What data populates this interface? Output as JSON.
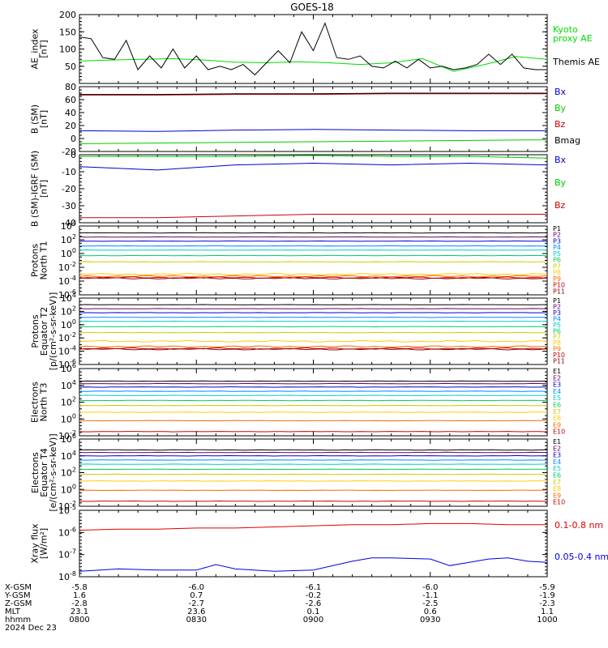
{
  "title": "GOES-18",
  "chart_data": [
    {
      "type": "line",
      "ylabel_lines": [
        "AE_index",
        "[nT]"
      ],
      "ylim": [
        0,
        200
      ],
      "yticks": [
        "50",
        "100",
        "150",
        "200"
      ],
      "series": [
        {
          "name": "Kyoto proxy AE",
          "legend_lines": [
            "Kyoto",
            "proxy AE"
          ],
          "color": "#00dd00",
          "x": [
            0,
            8,
            16,
            24,
            32,
            40,
            48,
            56,
            64,
            72,
            80,
            88,
            96,
            104,
            112,
            120
          ],
          "y": [
            65,
            68,
            70,
            72,
            68,
            62,
            60,
            63,
            60,
            55,
            60,
            72,
            35,
            55,
            78,
            70
          ]
        },
        {
          "name": "Themis AE",
          "legend_lines": [
            "Themis AE"
          ],
          "color": "#000000",
          "x": [
            0,
            3,
            6,
            9,
            12,
            15,
            18,
            21,
            24,
            27,
            30,
            33,
            36,
            39,
            42,
            45,
            48,
            51,
            54,
            57,
            60,
            63,
            66,
            69,
            72,
            75,
            78,
            81,
            84,
            87,
            90,
            93,
            96,
            99,
            102,
            105,
            108,
            111,
            114,
            117,
            120
          ],
          "y": [
            135,
            130,
            75,
            70,
            125,
            40,
            80,
            45,
            100,
            45,
            80,
            40,
            50,
            40,
            55,
            25,
            60,
            95,
            60,
            150,
            95,
            175,
            75,
            70,
            80,
            50,
            45,
            65,
            45,
            70,
            45,
            50,
            40,
            45,
            55,
            85,
            55,
            85,
            45,
            40,
            40
          ]
        }
      ]
    },
    {
      "type": "line",
      "ylabel_lines": [
        "B (SM)",
        "[nT]"
      ],
      "ylim": [
        -20,
        80
      ],
      "yticks": [
        "-20",
        "0",
        "20",
        "40",
        "60",
        "80"
      ],
      "series": [
        {
          "name": "Bx",
          "color": "#0000cc",
          "x": [
            0,
            20,
            40,
            60,
            80,
            100,
            120
          ],
          "y": [
            12,
            11,
            13,
            14,
            13,
            12,
            12
          ]
        },
        {
          "name": "By",
          "color": "#00cc00",
          "x": [
            0,
            20,
            40,
            60,
            80,
            100,
            120
          ],
          "y": [
            -8,
            -7,
            -6,
            -5,
            -4,
            -3,
            -2
          ]
        },
        {
          "name": "Bz",
          "color": "#cc0000",
          "x": [
            0,
            20,
            40,
            60,
            80,
            100,
            120
          ],
          "y": [
            67,
            67,
            68,
            68,
            69,
            69,
            69
          ]
        },
        {
          "name": "Bmag",
          "color": "#000000",
          "x": [
            0,
            20,
            40,
            60,
            80,
            100,
            120
          ],
          "y": [
            68,
            68,
            69,
            69,
            70,
            70,
            70
          ]
        }
      ]
    },
    {
      "type": "line",
      "ylabel_lines": [
        "B (SM)-IGRF (SM)",
        "[nT]"
      ],
      "ylim": [
        -40,
        0
      ],
      "yticks": [
        "-40",
        "-30",
        "-20",
        "-10",
        "0"
      ],
      "series": [
        {
          "name": "Bx",
          "color": "#0000cc",
          "x": [
            0,
            20,
            40,
            60,
            80,
            100,
            120
          ],
          "y": [
            -7,
            -9,
            -6,
            -5,
            -6,
            -5,
            -6
          ]
        },
        {
          "name": "By",
          "color": "#00cc00",
          "x": [
            0,
            20,
            40,
            60,
            80,
            100,
            120
          ],
          "y": [
            -1,
            -1,
            -1,
            0,
            -1,
            -1,
            -2
          ]
        },
        {
          "name": "Bz",
          "color": "#cc0000",
          "x": [
            0,
            20,
            40,
            60,
            80,
            100,
            120
          ],
          "y": [
            -37,
            -37,
            -36,
            -35,
            -35,
            -35,
            -35
          ]
        }
      ]
    },
    {
      "type": "line",
      "log": true,
      "ylabel_lines": [
        "Protons",
        "North T1"
      ],
      "ylim": [
        -6,
        4
      ],
      "yticks": [
        "10^4",
        "10^2",
        "10^0",
        "10^-2",
        "10^-4",
        "10^-6"
      ],
      "series": [
        {
          "name": "P1",
          "color": "#000000",
          "level": 3.0
        },
        {
          "name": "P2",
          "color": "#660066",
          "level": 2.4
        },
        {
          "name": "P3",
          "color": "#0000cc",
          "level": 1.8
        },
        {
          "name": "P4",
          "color": "#0088ff",
          "level": 1.1
        },
        {
          "name": "P5",
          "color": "#00cccc",
          "level": 0.5
        },
        {
          "name": "P6",
          "color": "#00cc66",
          "level": -0.3
        },
        {
          "name": "P7",
          "color": "#cccc00",
          "level": -1.2
        },
        {
          "name": "P8",
          "color": "#ffcc00",
          "level": -3.0
        },
        {
          "name": "P9",
          "color": "#ff6600",
          "level": -3.3
        },
        {
          "name": "P10",
          "color": "#cc0000",
          "level": -3.5
        },
        {
          "name": "P11",
          "color": "#990000",
          "level": -3.6
        }
      ]
    },
    {
      "type": "line",
      "log": true,
      "ylabel_lines": [
        "Protons",
        "Equator T2",
        "[p/(cm²-s-sr-keV)]"
      ],
      "ylim": [
        -6,
        4
      ],
      "yticks": [
        "10^4",
        "10^2",
        "10^0",
        "10^-2",
        "10^-4",
        "10^-6"
      ],
      "series": [
        {
          "name": "P1",
          "color": "#000000",
          "level": 3.0
        },
        {
          "name": "P2",
          "color": "#660066",
          "level": 2.4
        },
        {
          "name": "P3",
          "color": "#0000cc",
          "level": 1.8
        },
        {
          "name": "P4",
          "color": "#0088ff",
          "level": 1.1
        },
        {
          "name": "P5",
          "color": "#00cccc",
          "level": 0.5
        },
        {
          "name": "P6",
          "color": "#00cc66",
          "level": -0.3
        },
        {
          "name": "P7",
          "color": "#cccc00",
          "level": -1.2
        },
        {
          "name": "P8",
          "color": "#ffcc00",
          "level": -2.5
        },
        {
          "name": "P9",
          "color": "#ff6600",
          "level": -3.3
        },
        {
          "name": "P10",
          "color": "#cc0000",
          "level": -3.6
        },
        {
          "name": "P11",
          "color": "#990000",
          "level": -3.7
        }
      ]
    },
    {
      "type": "line",
      "log": true,
      "ylabel_lines": [
        "Electrons",
        "North T3"
      ],
      "ylim": [
        -2,
        6
      ],
      "yticks": [
        "10^6",
        "10^4",
        "10^2",
        "10^0",
        "10^-2"
      ],
      "series": [
        {
          "name": "E1",
          "color": "#000000",
          "level": 4.5
        },
        {
          "name": "E2",
          "color": "#660066",
          "level": 4.2
        },
        {
          "name": "E3",
          "color": "#0000cc",
          "level": 3.8
        },
        {
          "name": "E4",
          "color": "#0088ff",
          "level": 3.3
        },
        {
          "name": "E5",
          "color": "#00cccc",
          "level": 2.8
        },
        {
          "name": "E6",
          "color": "#00cc66",
          "level": 2.2
        },
        {
          "name": "E7",
          "color": "#cccc00",
          "level": 1.6
        },
        {
          "name": "E8",
          "color": "#ffcc00",
          "level": 0.8
        },
        {
          "name": "E9",
          "color": "#ff6600",
          "level": -0.2
        },
        {
          "name": "E10",
          "color": "#cc0000",
          "level": -1.5
        }
      ]
    },
    {
      "type": "line",
      "log": true,
      "ylabel_lines": [
        "Electrons",
        "Equator T4",
        "[e/(cm²-s-sr-keV)]"
      ],
      "ylim": [
        -2,
        6
      ],
      "yticks": [
        "10^6",
        "10^4",
        "10^2",
        "10^0",
        "10^-2"
      ],
      "series": [
        {
          "name": "E1",
          "color": "#000000",
          "level": 4.7
        },
        {
          "name": "E2",
          "color": "#660066",
          "level": 4.4
        },
        {
          "name": "E3",
          "color": "#0000cc",
          "level": 4.0
        },
        {
          "name": "E4",
          "color": "#0088ff",
          "level": 3.5
        },
        {
          "name": "E5",
          "color": "#00cccc",
          "level": 3.0
        },
        {
          "name": "E6",
          "color": "#00cc66",
          "level": 2.4
        },
        {
          "name": "E7",
          "color": "#cccc00",
          "level": 1.8
        },
        {
          "name": "E8",
          "color": "#ffcc00",
          "level": 1.0
        },
        {
          "name": "E9",
          "color": "#ff6600",
          "level": -0.1
        },
        {
          "name": "E10",
          "color": "#cc0000",
          "level": -1.4
        }
      ]
    },
    {
      "type": "line",
      "log": true,
      "ylabel_lines": [
        "Xray flux",
        "[W/m²]"
      ],
      "ylim": [
        -8,
        -5
      ],
      "yticks": [
        "10^-5",
        "10^-6",
        "10^-7",
        "10^-8"
      ],
      "series": [
        {
          "name": "0.1-0.8 nm",
          "color": "#dd0000",
          "x": [
            0,
            10,
            20,
            30,
            40,
            50,
            60,
            70,
            80,
            90,
            100,
            110,
            120
          ],
          "y": [
            -5.9,
            -5.85,
            -5.85,
            -5.8,
            -5.8,
            -5.75,
            -5.7,
            -5.65,
            -5.65,
            -5.6,
            -5.6,
            -5.65,
            -5.65
          ]
        },
        {
          "name": "0.05-0.4 nm",
          "color": "#0000dd",
          "x": [
            0,
            10,
            20,
            30,
            35,
            40,
            50,
            60,
            70,
            75,
            80,
            90,
            95,
            100,
            105,
            110,
            115,
            120
          ],
          "y": [
            -7.75,
            -7.65,
            -7.7,
            -7.7,
            -7.45,
            -7.65,
            -7.75,
            -7.7,
            -7.3,
            -7.15,
            -7.15,
            -7.2,
            -7.5,
            -7.35,
            -7.2,
            -7.15,
            -7.3,
            -7.35
          ]
        }
      ]
    }
  ],
  "x_axis": {
    "row_labels": [
      "X-GSM",
      "Y-GSM",
      "Z-GSM",
      "MLT",
      "hhmm",
      "2024 Dec 23"
    ],
    "ticks": [
      {
        "col": [
          "-5.8",
          "1.6",
          "-2.8",
          "23.1",
          "0800"
        ]
      },
      {
        "col": [
          "-6.0",
          "0.7",
          "-2.7",
          "23.6",
          "0830"
        ]
      },
      {
        "col": [
          "-6.1",
          "-0.2",
          "-2.6",
          "0.1",
          "0900"
        ]
      },
      {
        "col": [
          "-6.0",
          "-1.1",
          "-2.5",
          "0.6",
          "0930"
        ]
      },
      {
        "col": [
          "-5.9",
          "-1.9",
          "-2.3",
          "1.1",
          "1000"
        ]
      }
    ]
  }
}
